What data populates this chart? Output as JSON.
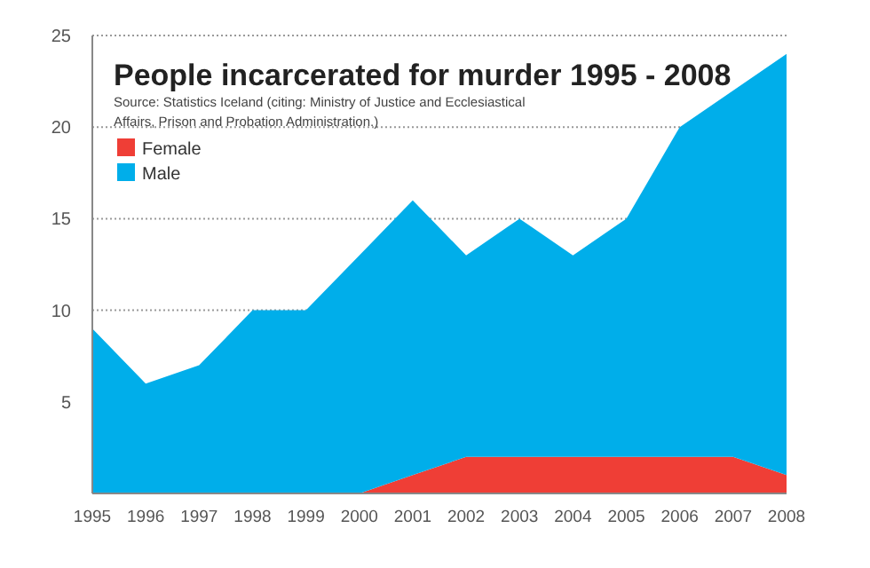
{
  "chart_data": {
    "type": "area",
    "title": "People incarcerated for murder 1995 - 2008",
    "subtitle": "Source: Statistics Iceland (citing: Ministry of Justice and Ecclesiastical Affairs, Prison and Probation Administration.)",
    "categories": [
      "1995",
      "1996",
      "1997",
      "1998",
      "1999",
      "2000",
      "2001",
      "2002",
      "2003",
      "2004",
      "2005",
      "2006",
      "2007",
      "2008"
    ],
    "series": [
      {
        "name": "Female",
        "color": "#ef3e36",
        "values": [
          0,
          0,
          0,
          0,
          0,
          0,
          1,
          2,
          2,
          2,
          2,
          2,
          2,
          1
        ]
      },
      {
        "name": "Male",
        "color": "#00aeea",
        "values": [
          9,
          6,
          7,
          10,
          10,
          13,
          15,
          11,
          13,
          11,
          13,
          18,
          20,
          23
        ]
      }
    ],
    "stacked": true,
    "ylim": [
      0,
      25
    ],
    "yticks": [
      {
        "value": 0,
        "label": null
      },
      5,
      10,
      15,
      20,
      25
    ],
    "grid": "y",
    "legend": "top left"
  }
}
